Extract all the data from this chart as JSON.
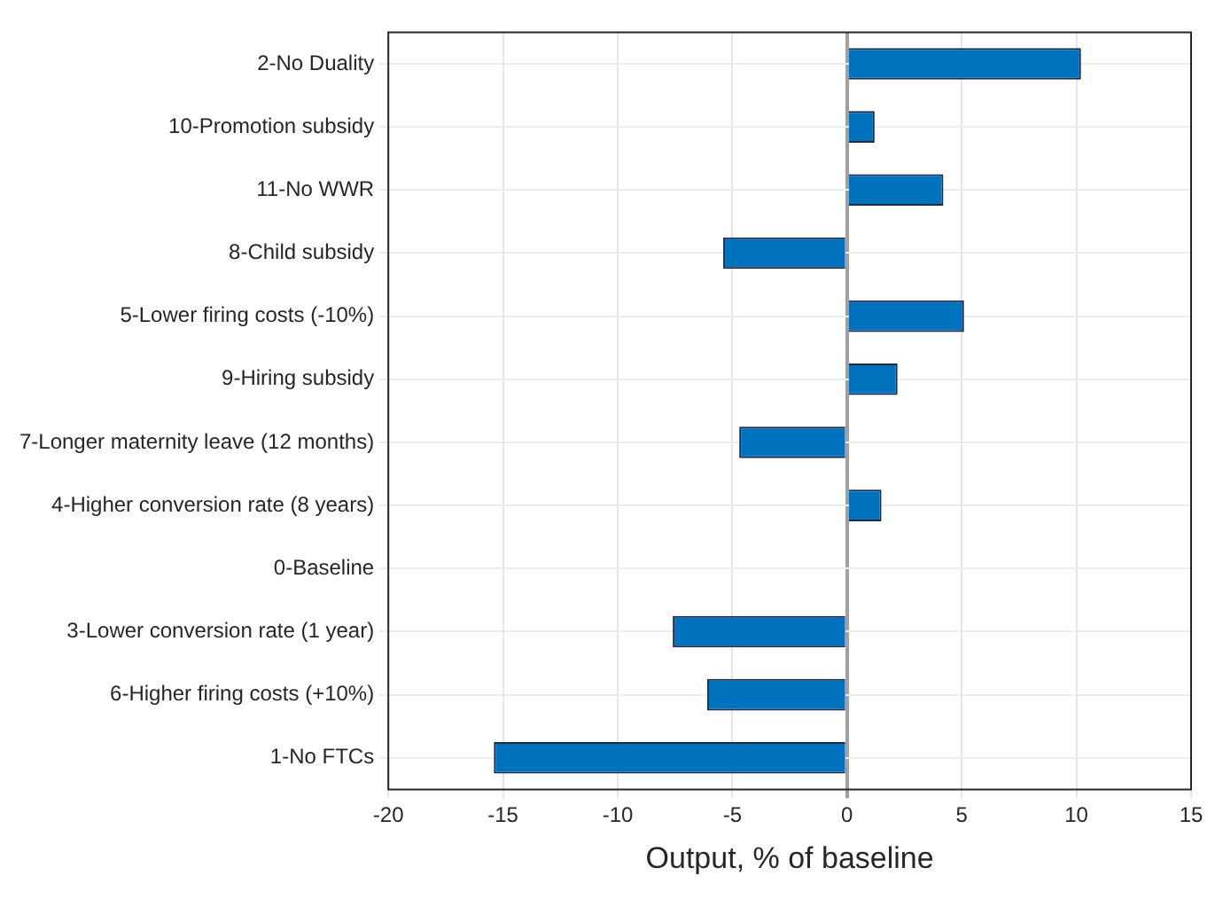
{
  "chart_data": {
    "type": "bar",
    "orientation": "horizontal",
    "xlabel": "Output, % of baseline",
    "categories": [
      "2-No Duality",
      "10-Promotion subsidy",
      "11-No WWR",
      "8-Child subsidy",
      "5-Lower firing costs (-10%)",
      "9-Hiring subsidy",
      "7-Longer maternity leave (12 months)",
      "4-Higher conversion rate (8 years)",
      "0-Baseline",
      "3-Lower conversion rate (1 year)",
      "6-Higher firing costs (+10%)",
      "1-No FTCs"
    ],
    "values": [
      10.2,
      1.2,
      4.2,
      -5.4,
      5.1,
      2.2,
      -4.7,
      1.5,
      0,
      -7.6,
      -6.1,
      -15.4
    ],
    "color": "#0072bd",
    "xlim": [
      -20,
      15
    ],
    "xticks": [
      -20,
      -15,
      -10,
      -5,
      0,
      5,
      10,
      15
    ],
    "grid": true,
    "legend": false
  }
}
